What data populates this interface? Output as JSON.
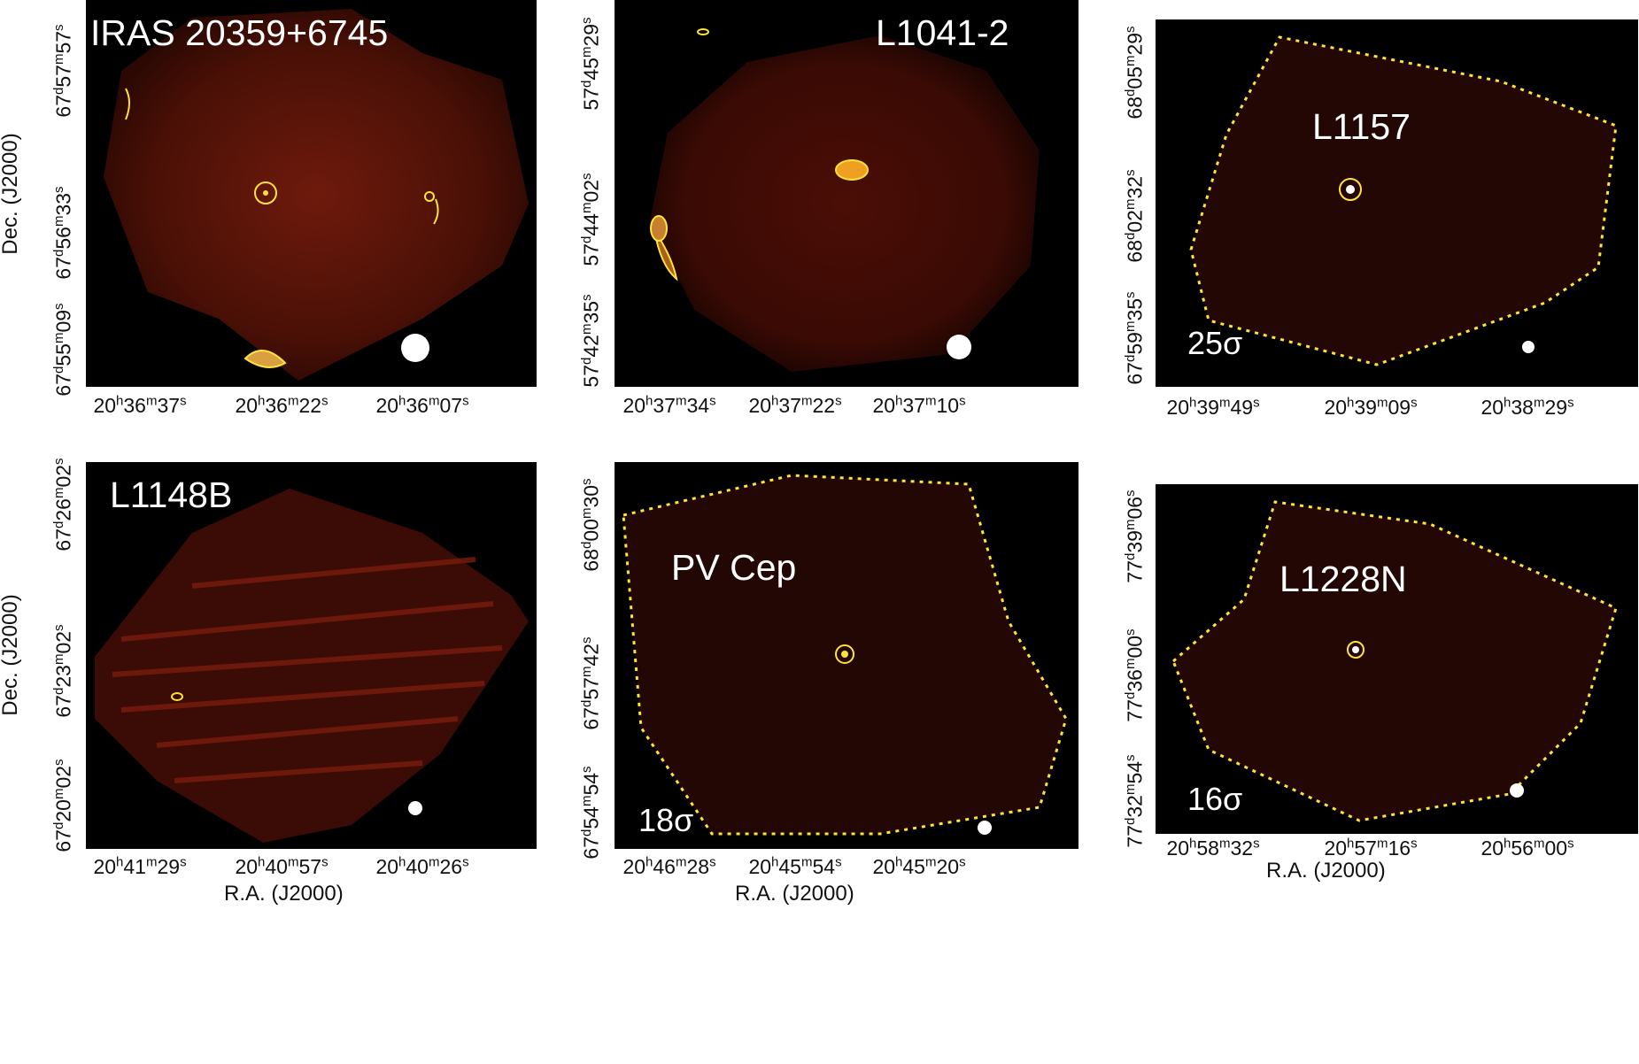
{
  "axes": {
    "x_title": "R.A. (J2000)",
    "y_title": "Dec. (J2000)"
  },
  "panels": [
    {
      "id": "iras",
      "source_label": "IRAS 20359+6745",
      "sigma_label": "",
      "x_ticks": [
        {
          "h": "20",
          "m": "36",
          "s": "37"
        },
        {
          "h": "20",
          "m": "36",
          "s": "22"
        },
        {
          "h": "20",
          "m": "36",
          "s": "07"
        }
      ],
      "y_ticks": [
        {
          "d": "67",
          "m": "57",
          "s": "57"
        },
        {
          "d": "67",
          "m": "56",
          "s": "33"
        },
        {
          "d": "67",
          "m": "55",
          "s": "09"
        }
      ]
    },
    {
      "id": "l1041",
      "source_label": "L1041-2",
      "sigma_label": "",
      "x_ticks": [
        {
          "h": "20",
          "m": "37",
          "s": "34"
        },
        {
          "h": "20",
          "m": "37",
          "s": "22"
        },
        {
          "h": "20",
          "m": "37",
          "s": "10"
        }
      ],
      "y_ticks": [
        {
          "d": "57",
          "m": "45",
          "s": "29"
        },
        {
          "d": "57",
          "m": "44",
          "s": "02"
        },
        {
          "d": "57",
          "m": "42",
          "s": "35"
        }
      ]
    },
    {
      "id": "l1157",
      "source_label": "L1157",
      "sigma_label": "25σ",
      "x_ticks": [
        {
          "h": "20",
          "m": "39",
          "s": "49"
        },
        {
          "h": "20",
          "m": "39",
          "s": "09"
        },
        {
          "h": "20",
          "m": "38",
          "s": "29"
        }
      ],
      "y_ticks": [
        {
          "d": "68",
          "m": "05",
          "s": "29"
        },
        {
          "d": "68",
          "m": "02",
          "s": "32"
        },
        {
          "d": "67",
          "m": "59",
          "s": "35"
        }
      ]
    },
    {
      "id": "l1148",
      "source_label": "L1148B",
      "sigma_label": "",
      "x_ticks": [
        {
          "h": "20",
          "m": "41",
          "s": "29"
        },
        {
          "h": "20",
          "m": "40",
          "s": "57"
        },
        {
          "h": "20",
          "m": "40",
          "s": "26"
        }
      ],
      "y_ticks": [
        {
          "d": "67",
          "m": "26",
          "s": "02"
        },
        {
          "d": "67",
          "m": "23",
          "s": "02"
        },
        {
          "d": "67",
          "m": "20",
          "s": "02"
        }
      ]
    },
    {
      "id": "pvcep",
      "source_label": "PV Cep",
      "sigma_label": "18σ",
      "x_ticks": [
        {
          "h": "20",
          "m": "46",
          "s": "28"
        },
        {
          "h": "20",
          "m": "45",
          "s": "54"
        },
        {
          "h": "20",
          "m": "45",
          "s": "20"
        }
      ],
      "y_ticks": [
        {
          "d": "68",
          "m": "00",
          "s": "30"
        },
        {
          "d": "67",
          "m": "57",
          "s": "42"
        },
        {
          "d": "67",
          "m": "54",
          "s": "54"
        }
      ]
    },
    {
      "id": "l1228",
      "source_label": "L1228N",
      "sigma_label": "16σ",
      "x_ticks": [
        {
          "h": "20",
          "m": "58",
          "s": "32"
        },
        {
          "h": "20",
          "m": "57",
          "s": "16"
        },
        {
          "h": "20",
          "m": "56",
          "s": "00"
        }
      ],
      "y_ticks": [
        {
          "d": "77",
          "m": "39",
          "s": "06"
        },
        {
          "d": "77",
          "m": "36",
          "s": "00"
        },
        {
          "d": "77",
          "m": "32",
          "s": "54"
        }
      ]
    }
  ],
  "colors": {
    "background": "#000000",
    "map_glow": "#5a1208",
    "contour": "#ffe23a",
    "beam": "#ffffff"
  }
}
